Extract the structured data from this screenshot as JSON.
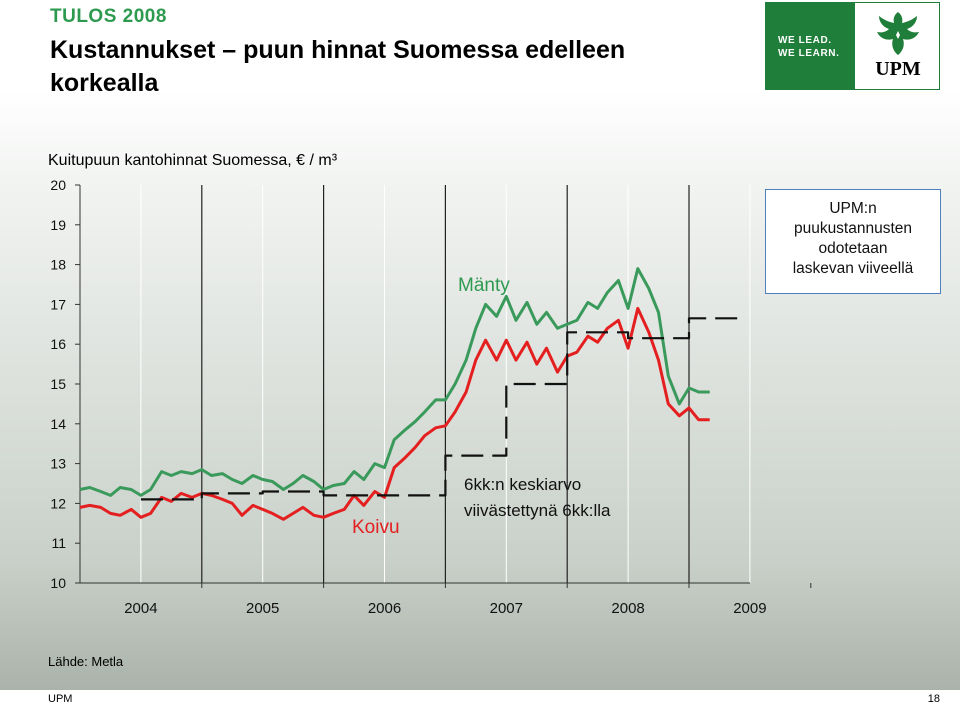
{
  "header": {
    "kicker": "TULOS 2008",
    "title": "Kustannukset – puun hinnat Suomessa edelleen korkealla"
  },
  "logo": {
    "tagline_1": "WE LEAD.",
    "tagline_2": "WE LEARN.",
    "name": "UPM",
    "icon": "griffin-icon",
    "green": "#1f7f3a"
  },
  "callout": {
    "line1": "UPM:n",
    "line2": "puukustannusten",
    "line3": "odotetaan",
    "line4": "laskevan viiveellä"
  },
  "source": "Lähde: Metla",
  "footer": {
    "left": "UPM",
    "right": "18"
  },
  "chart_data": {
    "type": "line",
    "title": "Kuitupuun kantohinnat Suomessa, € / m³",
    "ylim": [
      10,
      20
    ],
    "xlim": [
      2004,
      2009.5
    ],
    "y_ticks": [
      "10",
      "11",
      "12",
      "13",
      "14",
      "15",
      "16",
      "17",
      "18",
      "19",
      "20"
    ],
    "x_ticks": [
      "2004",
      "2005",
      "2006",
      "2007",
      "2008",
      "2009"
    ],
    "grid": "vertical year lines",
    "annotations": [
      "Mänty",
      "Koivu",
      "6kk:n keskiarvo viivästettynä 6kk:lla"
    ],
    "series": [
      {
        "name": "Mänty",
        "color": "#3a9a5b",
        "x": [
          2004.0,
          2004.08,
          2004.17,
          2004.25,
          2004.33,
          2004.42,
          2004.5,
          2004.58,
          2004.67,
          2004.75,
          2004.83,
          2004.92,
          2005.0,
          2005.08,
          2005.17,
          2005.25,
          2005.33,
          2005.42,
          2005.5,
          2005.58,
          2005.67,
          2005.75,
          2005.83,
          2005.92,
          2006.0,
          2006.08,
          2006.17,
          2006.25,
          2006.33,
          2006.42,
          2006.5,
          2006.58,
          2006.67,
          2006.75,
          2006.83,
          2006.92,
          2007.0,
          2007.08,
          2007.17,
          2007.25,
          2007.33,
          2007.42,
          2007.5,
          2007.58,
          2007.67,
          2007.75,
          2007.83,
          2007.92,
          2008.0,
          2008.08,
          2008.17,
          2008.25,
          2008.33,
          2008.42,
          2008.5,
          2008.58,
          2008.67,
          2008.75,
          2008.83,
          2008.92,
          2009.0,
          2009.08,
          2009.17
        ],
        "values": [
          12.35,
          12.4,
          12.3,
          12.2,
          12.4,
          12.35,
          12.2,
          12.35,
          12.8,
          12.7,
          12.8,
          12.75,
          12.85,
          12.7,
          12.75,
          12.6,
          12.5,
          12.7,
          12.6,
          12.55,
          12.35,
          12.5,
          12.7,
          12.55,
          12.35,
          12.45,
          12.5,
          12.8,
          12.6,
          13.0,
          12.9,
          13.6,
          13.85,
          14.05,
          14.3,
          14.6,
          14.6,
          15.0,
          15.6,
          16.4,
          17.0,
          16.7,
          17.2,
          16.6,
          17.05,
          16.5,
          16.8,
          16.4,
          16.5,
          16.6,
          17.05,
          16.9,
          17.3,
          17.6,
          16.9,
          17.9,
          17.4,
          16.8,
          15.2,
          14.5,
          14.9,
          14.8,
          14.8
        ]
      },
      {
        "name": "Koivu",
        "color": "#e41f1f",
        "x": [
          2004.0,
          2004.08,
          2004.17,
          2004.25,
          2004.33,
          2004.42,
          2004.5,
          2004.58,
          2004.67,
          2004.75,
          2004.83,
          2004.92,
          2005.0,
          2005.08,
          2005.17,
          2005.25,
          2005.33,
          2005.42,
          2005.5,
          2005.58,
          2005.67,
          2005.75,
          2005.83,
          2005.92,
          2006.0,
          2006.08,
          2006.17,
          2006.25,
          2006.33,
          2006.42,
          2006.5,
          2006.58,
          2006.67,
          2006.75,
          2006.83,
          2006.92,
          2007.0,
          2007.08,
          2007.17,
          2007.25,
          2007.33,
          2007.42,
          2007.5,
          2007.58,
          2007.67,
          2007.75,
          2007.83,
          2007.92,
          2008.0,
          2008.08,
          2008.17,
          2008.25,
          2008.33,
          2008.42,
          2008.5,
          2008.58,
          2008.67,
          2008.75,
          2008.83,
          2008.92,
          2009.0,
          2009.08,
          2009.17
        ],
        "values": [
          11.9,
          11.95,
          11.9,
          11.75,
          11.7,
          11.85,
          11.65,
          11.75,
          12.15,
          12.05,
          12.25,
          12.15,
          12.25,
          12.2,
          12.1,
          12.0,
          11.7,
          11.95,
          11.85,
          11.75,
          11.6,
          11.75,
          11.9,
          11.7,
          11.65,
          11.75,
          11.85,
          12.2,
          11.95,
          12.3,
          12.15,
          12.9,
          13.15,
          13.4,
          13.7,
          13.9,
          13.95,
          14.3,
          14.8,
          15.6,
          16.1,
          15.6,
          16.1,
          15.6,
          16.05,
          15.5,
          15.9,
          15.3,
          15.7,
          15.8,
          16.2,
          16.05,
          16.4,
          16.6,
          15.9,
          16.9,
          16.3,
          15.6,
          14.5,
          14.2,
          14.4,
          14.1,
          14.1
        ]
      },
      {
        "name": "6kk:n keskiarvo viivästettynä 6kk:lla",
        "color": "#111111",
        "dashed": true,
        "x": [
          2004.5,
          2005.0,
          2005.0,
          2005.5,
          2005.5,
          2006.0,
          2006.0,
          2006.5,
          2006.5,
          2007.0,
          2007.0,
          2007.5,
          2007.5,
          2008.0,
          2008.0,
          2008.5,
          2008.5,
          2009.0,
          2009.0,
          2009.4
        ],
        "values": [
          12.1,
          12.1,
          12.25,
          12.25,
          12.3,
          12.3,
          12.2,
          12.2,
          12.2,
          12.2,
          13.2,
          13.2,
          15.0,
          15.0,
          16.3,
          16.3,
          16.15,
          16.15,
          16.65,
          16.65
        ]
      }
    ]
  }
}
